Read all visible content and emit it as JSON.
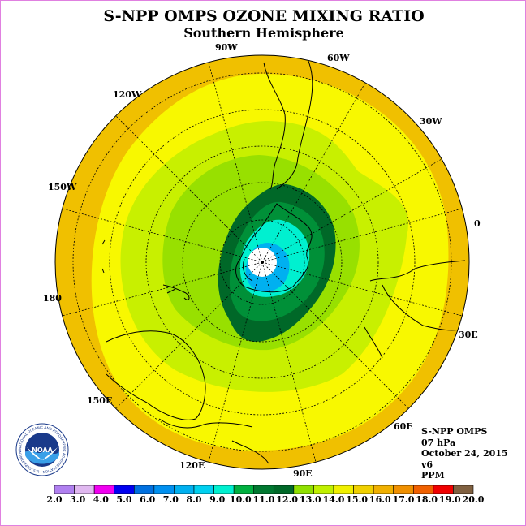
{
  "title": "S-NPP OMPS OZONE MIXING RATIO",
  "subtitle": "Southern Hemisphere",
  "longitude_labels": [
    {
      "name": "90w",
      "text": "90W"
    },
    {
      "name": "60w",
      "text": "60W"
    },
    {
      "name": "30w",
      "text": "30W"
    },
    {
      "name": "0",
      "text": "0"
    },
    {
      "name": "30e",
      "text": "30E"
    },
    {
      "name": "60e",
      "text": "60E"
    },
    {
      "name": "90e",
      "text": "90E"
    },
    {
      "name": "120e",
      "text": "120E"
    },
    {
      "name": "150e",
      "text": "150E"
    },
    {
      "name": "180",
      "text": "180"
    },
    {
      "name": "150w",
      "text": "150W"
    },
    {
      "name": "120w",
      "text": "120W"
    }
  ],
  "info": {
    "instrument": "S-NPP OMPS",
    "level": "07 hPa",
    "date": "October 24, 2015",
    "version": "v6",
    "units": "PPM"
  },
  "logo": {
    "text": "NOAA",
    "ring_text": "NATIONAL OCEANIC AND ATMOSPHERIC ADMINISTRATION · U.S. DEPARTMENT OF COMMERCE"
  },
  "colorbar": {
    "labels": [
      "2.0",
      "3.0",
      "4.0",
      "5.0",
      "6.0",
      "7.0",
      "8.0",
      "9.0",
      "10.0",
      "11.0",
      "12.0",
      "13.0",
      "14.0",
      "15.0",
      "16.0",
      "17.0",
      "18.0",
      "19.0",
      "20.0"
    ],
    "colors": [
      "#b080f0",
      "#e0b8f0",
      "#f000f0",
      "#0000f0",
      "#0070e0",
      "#0090f0",
      "#00b0f0",
      "#00d0f0",
      "#00f0d0",
      "#00b040",
      "#007830",
      "#006828",
      "#90e000",
      "#c0f000",
      "#f0f000",
      "#f0d000",
      "#f0b000",
      "#f09000",
      "#f06000",
      "#f00000",
      "#806040"
    ]
  }
}
